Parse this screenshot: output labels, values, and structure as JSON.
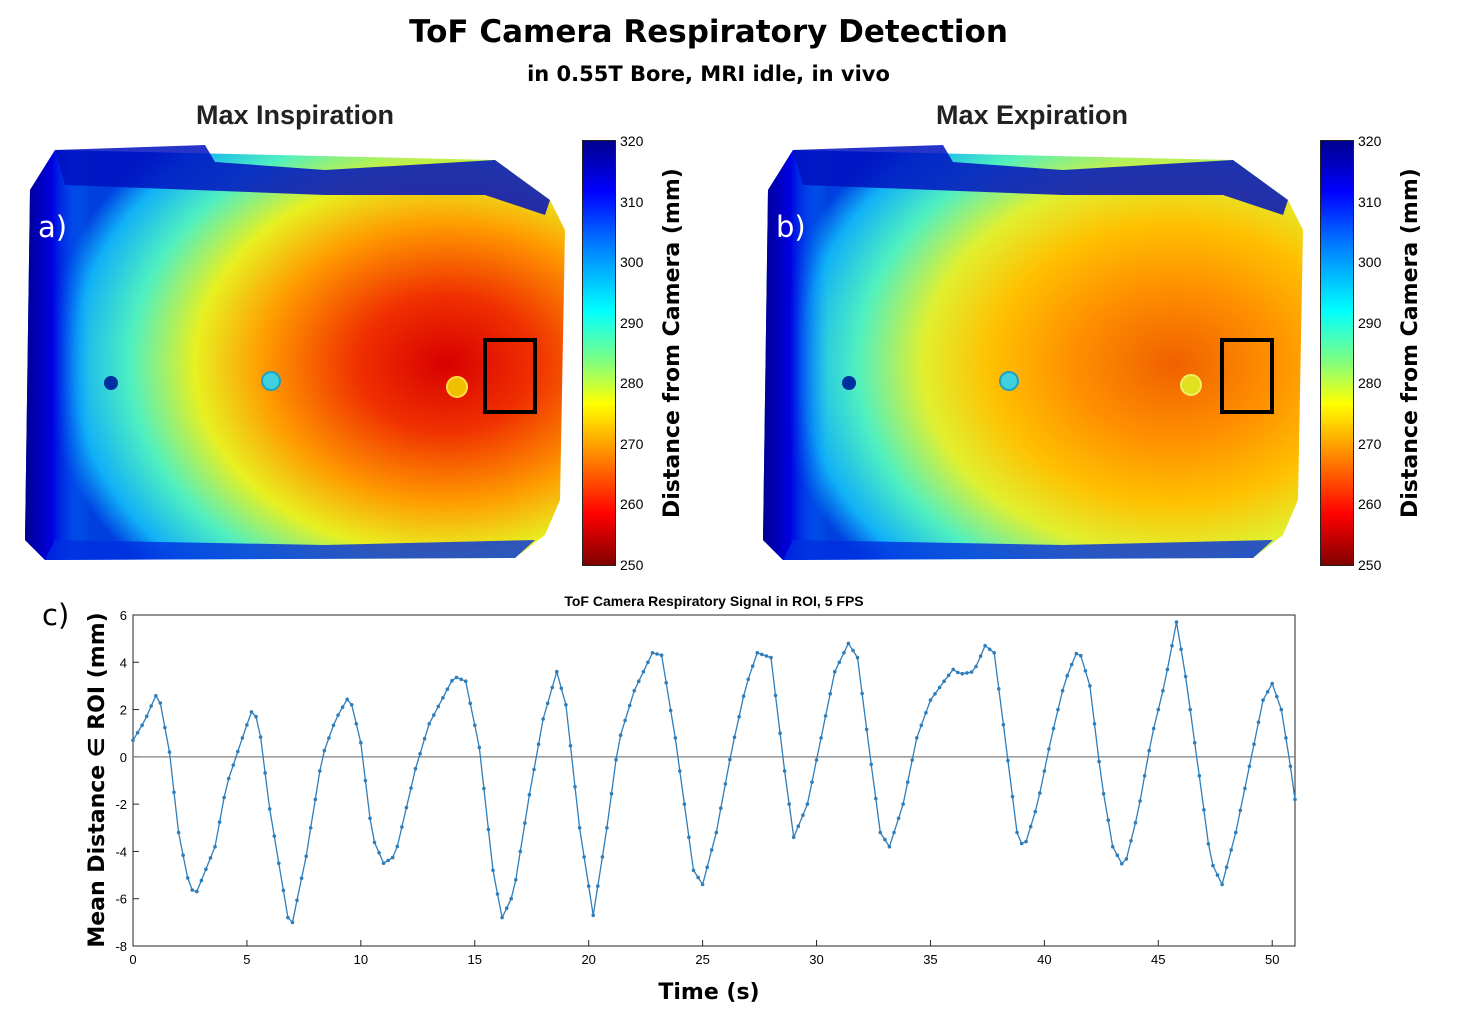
{
  "header": {
    "title": "ToF Camera Respiratory Detection",
    "subtitle": "in 0.55T Bore, MRI idle, in vivo"
  },
  "panels": [
    {
      "letter": "a)",
      "title": "Max Inspiration"
    },
    {
      "letter": "b)",
      "title": "Max Expiration"
    },
    {
      "letter": "c)"
    }
  ],
  "colorbar": {
    "label": "Distance from Camera (mm)",
    "ticks": [
      "320",
      "310",
      "300",
      "290",
      "280",
      "270",
      "260",
      "250"
    ],
    "range": [
      250,
      320
    ]
  },
  "colors": {
    "series": "#2f7ebc",
    "zero_line": "#808080",
    "far": "#00008f",
    "near": "#800000"
  },
  "chart_data": {
    "type": "line",
    "title": "ToF Camera Respiratory Signal in ROI, 5 FPS",
    "xlabel": "Time (s)",
    "ylabel": "Mean Distance ∈ ROI (mm)",
    "xlim": [
      0,
      51
    ],
    "ylim": [
      -8,
      6
    ],
    "xticks": [
      0,
      5,
      10,
      15,
      20,
      25,
      30,
      35,
      40,
      45,
      50
    ],
    "yticks": [
      -8,
      -6,
      -4,
      -2,
      0,
      2,
      4,
      6
    ],
    "reference_line": 0,
    "keypoints": [
      [
        0,
        0.7
      ],
      [
        0.5,
        1.5
      ],
      [
        1.1,
        2.8
      ],
      [
        1.6,
        0.2
      ],
      [
        2.0,
        -3.2
      ],
      [
        2.5,
        -5.6
      ],
      [
        2.8,
        -5.7
      ],
      [
        3.6,
        -3.8
      ],
      [
        4.1,
        -1.2
      ],
      [
        4.8,
        0.8
      ],
      [
        5.2,
        1.9
      ],
      [
        5.5,
        1.6
      ],
      [
        6.0,
        -2.2
      ],
      [
        6.8,
        -6.8
      ],
      [
        7.0,
        -7.0
      ],
      [
        7.6,
        -4.2
      ],
      [
        8.3,
        0.0
      ],
      [
        8.9,
        1.6
      ],
      [
        9.5,
        2.6
      ],
      [
        10.0,
        0.6
      ],
      [
        10.5,
        -3.4
      ],
      [
        11.0,
        -4.5
      ],
      [
        11.5,
        -4.2
      ],
      [
        12.4,
        -0.5
      ],
      [
        13.0,
        1.4
      ],
      [
        13.6,
        2.5
      ],
      [
        14.1,
        3.4
      ],
      [
        14.6,
        3.2
      ],
      [
        15.2,
        0.4
      ],
      [
        15.8,
        -4.8
      ],
      [
        16.2,
        -6.8
      ],
      [
        16.7,
        -5.8
      ],
      [
        17.4,
        -1.6
      ],
      [
        18.0,
        1.6
      ],
      [
        18.6,
        3.6
      ],
      [
        19.0,
        2.2
      ],
      [
        19.6,
        -3.0
      ],
      [
        20.2,
        -6.7
      ],
      [
        20.8,
        -3.0
      ],
      [
        21.3,
        0.6
      ],
      [
        22.0,
        2.8
      ],
      [
        22.8,
        4.4
      ],
      [
        23.2,
        4.3
      ],
      [
        23.8,
        0.8
      ],
      [
        24.6,
        -4.8
      ],
      [
        25.0,
        -5.4
      ],
      [
        25.6,
        -3.2
      ],
      [
        26.3,
        0.4
      ],
      [
        26.9,
        3.0
      ],
      [
        27.4,
        4.4
      ],
      [
        28.0,
        4.2
      ],
      [
        28.6,
        -0.6
      ],
      [
        29.0,
        -3.4
      ],
      [
        29.6,
        -2.0
      ],
      [
        30.2,
        0.8
      ],
      [
        30.8,
        3.6
      ],
      [
        31.4,
        4.8
      ],
      [
        31.8,
        4.2
      ],
      [
        32.3,
        0.4
      ],
      [
        32.8,
        -3.2
      ],
      [
        33.2,
        -3.8
      ],
      [
        33.8,
        -2.0
      ],
      [
        34.4,
        0.8
      ],
      [
        35.0,
        2.4
      ],
      [
        35.6,
        3.2
      ],
      [
        36.0,
        3.7
      ],
      [
        36.3,
        3.5
      ],
      [
        36.9,
        3.6
      ],
      [
        37.4,
        4.7
      ],
      [
        37.8,
        4.4
      ],
      [
        38.3,
        0.6
      ],
      [
        38.8,
        -3.2
      ],
      [
        39.1,
        -3.9
      ],
      [
        39.7,
        -2.0
      ],
      [
        40.3,
        0.8
      ],
      [
        40.9,
        3.2
      ],
      [
        41.5,
        4.6
      ],
      [
        42.0,
        3.0
      ],
      [
        42.5,
        -1.0
      ],
      [
        43.0,
        -3.8
      ],
      [
        43.5,
        -4.7
      ],
      [
        44.1,
        -2.4
      ],
      [
        44.7,
        0.8
      ],
      [
        45.3,
        3.2
      ],
      [
        45.8,
        5.7
      ],
      [
        46.2,
        3.4
      ],
      [
        46.8,
        -0.8
      ],
      [
        47.3,
        -4.4
      ],
      [
        47.8,
        -5.4
      ],
      [
        48.4,
        -3.2
      ],
      [
        49.0,
        -0.4
      ],
      [
        49.6,
        2.4
      ],
      [
        50.0,
        3.1
      ],
      [
        50.4,
        2.0
      ],
      [
        50.8,
        -0.4
      ],
      [
        51.0,
        -1.8
      ]
    ]
  }
}
